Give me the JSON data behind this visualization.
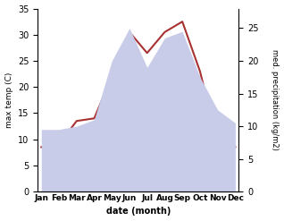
{
  "months": [
    "Jan",
    "Feb",
    "Mar",
    "Apr",
    "May",
    "Jun",
    "Jul",
    "Aug",
    "Sep",
    "Oct",
    "Nov",
    "Dec"
  ],
  "month_positions": [
    0,
    1,
    2,
    3,
    4,
    5,
    6,
    7,
    8,
    9,
    10,
    11
  ],
  "temperature": [
    8.5,
    9.0,
    13.5,
    14.0,
    22.0,
    30.5,
    26.5,
    30.5,
    32.5,
    23.0,
    9.5,
    8.5
  ],
  "precipitation": [
    9.5,
    9.5,
    10.0,
    11.0,
    20.0,
    25.0,
    19.0,
    23.5,
    24.5,
    17.5,
    12.5,
    10.5
  ],
  "temp_color": "#a83232",
  "precip_fill_color": "#c8cce8",
  "temp_ylim": [
    0,
    35
  ],
  "precip_ylim": [
    0,
    28
  ],
  "temp_yticks": [
    0,
    5,
    10,
    15,
    20,
    25,
    30,
    35
  ],
  "precip_yticks": [
    0,
    5,
    10,
    15,
    20,
    25
  ],
  "xlabel": "date (month)",
  "ylabel_left": "max temp (C)",
  "ylabel_right": "med. precipitation (kg/m2)",
  "background_color": "#ffffff"
}
